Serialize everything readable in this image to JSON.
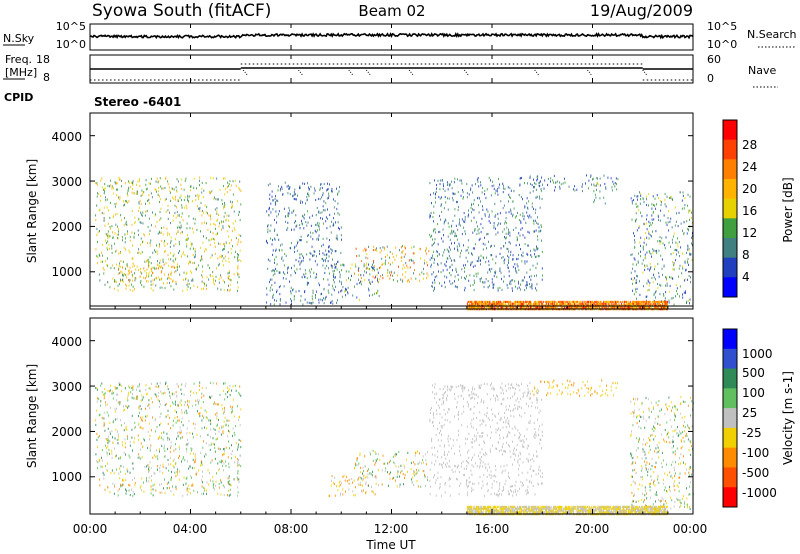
{
  "header": {
    "station": "Syowa South (fitACF)",
    "beam": "Beam 02",
    "date": "19/Aug/2009"
  },
  "noise_panel": {
    "left_label": "N.Sky",
    "left_ticks": [
      "10^5",
      "10^0"
    ],
    "right_ticks": [
      "10^5",
      "10^0"
    ],
    "right_label": "N.Search"
  },
  "freq_panel": {
    "left_label_line1": "Freq.",
    "left_label_line2": "[MHz]",
    "left_ticks": [
      "18",
      "8"
    ],
    "right_ticks": [
      "60",
      "0"
    ],
    "right_label": "Nave",
    "cpid_label": "CPID",
    "stereo_label": "Stereo -6401"
  },
  "power_panel": {
    "ylabel": "Slant Range [km]",
    "yticks": [
      "4000",
      "3000",
      "2000",
      "1000"
    ],
    "colorbar_label": "Power [dB]",
    "colorbar_ticks": [
      "28",
      "24",
      "20",
      "16",
      "12",
      "8",
      "4"
    ],
    "colorbar_colors": [
      "#ff0000",
      "#ff4000",
      "#ff7f00",
      "#ffb300",
      "#e6d200",
      "#40a040",
      "#408080",
      "#2040c0",
      "#0000ff"
    ]
  },
  "velocity_panel": {
    "ylabel": "Slant Range [km]",
    "yticks": [
      "4000",
      "3000",
      "2000",
      "1000"
    ],
    "colorbar_label": "Velocity [m s-1]",
    "colorbar_ticks": [
      "1000",
      "500",
      "100",
      "25",
      "-25",
      "-100",
      "-500",
      "-1000"
    ],
    "colorbar_colors": [
      "#0000ff",
      "#3050d0",
      "#2e8b57",
      "#60c060",
      "#c0c0c0",
      "#f0d000",
      "#ff8c00",
      "#ff5000",
      "#ff0000"
    ]
  },
  "xaxis": {
    "ticks": [
      "00:00",
      "04:00",
      "08:00",
      "12:00",
      "16:00",
      "20:00",
      "00:00"
    ],
    "label": "Time UT"
  },
  "chart_data": [
    {
      "type": "heatmap",
      "quantity": "Power [dB]",
      "x_range_hours": [
        0,
        24
      ],
      "y_range_km": [
        180,
        4500
      ],
      "color_range_db": [
        0,
        32
      ],
      "regions": [
        {
          "t": [
            0.2,
            6.0
          ],
          "km": [
            600,
            3100
          ],
          "db": [
            8,
            20
          ]
        },
        {
          "t": [
            1.0,
            3.5
          ],
          "km": [
            800,
            1200
          ],
          "db": [
            16,
            24
          ]
        },
        {
          "t": [
            7.0,
            10.0
          ],
          "km": [
            300,
            3000
          ],
          "db": [
            4,
            12
          ]
        },
        {
          "t": [
            9.5,
            11.5
          ],
          "km": [
            400,
            1200
          ],
          "db": [
            4,
            16
          ]
        },
        {
          "t": [
            10.5,
            13.5
          ],
          "km": [
            800,
            1600
          ],
          "db": [
            8,
            28
          ]
        },
        {
          "t": [
            13.5,
            18.0
          ],
          "km": [
            600,
            3100
          ],
          "db": [
            4,
            12
          ]
        },
        {
          "t": [
            15.0,
            23.0
          ],
          "km": [
            200,
            350
          ],
          "db": [
            16,
            30
          ]
        },
        {
          "t": [
            17.5,
            21.0
          ],
          "km": [
            2800,
            3150
          ],
          "db": [
            4,
            12
          ]
        },
        {
          "t": [
            20.0,
            20.5
          ],
          "km": [
            2500,
            3100
          ],
          "db": [
            8,
            16
          ]
        },
        {
          "t": [
            21.5,
            24.0
          ],
          "km": [
            300,
            2800
          ],
          "db": [
            4,
            16
          ]
        }
      ]
    },
    {
      "type": "heatmap",
      "quantity": "Velocity [m s-1]",
      "x_range_hours": [
        0,
        24
      ],
      "y_range_km": [
        180,
        4500
      ],
      "color_range": [
        -1000,
        1000
      ],
      "regions": [
        {
          "t": [
            0.2,
            6.0
          ],
          "km": [
            600,
            3100
          ],
          "v": [
            -500,
            500
          ]
        },
        {
          "t": [
            9.5,
            11.5
          ],
          "km": [
            600,
            1100
          ],
          "v": [
            -500,
            100
          ]
        },
        {
          "t": [
            10.5,
            13.5
          ],
          "km": [
            800,
            1600
          ],
          "v": [
            -500,
            500
          ]
        },
        {
          "t": [
            13.5,
            18.0
          ],
          "km": [
            600,
            3100
          ],
          "v": [
            -100,
            100
          ]
        },
        {
          "t": [
            15.0,
            22.0
          ],
          "km": [
            200,
            350
          ],
          "v": [
            -100,
            -25
          ]
        },
        {
          "t": [
            17.5,
            21.0
          ],
          "km": [
            2800,
            3150
          ],
          "v": [
            -500,
            -100
          ]
        },
        {
          "t": [
            21.5,
            24.0
          ],
          "km": [
            300,
            2800
          ],
          "v": [
            -500,
            500
          ]
        }
      ]
    }
  ]
}
